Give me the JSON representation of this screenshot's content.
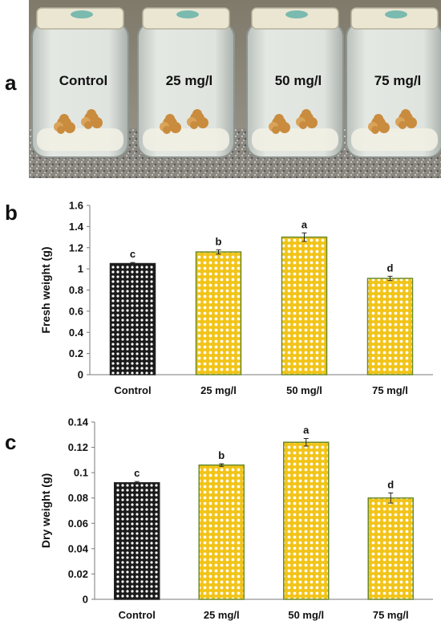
{
  "panels": [
    {
      "letter": "a",
      "jar_labels": [
        "Control",
        "25 mg/l",
        "50 mg/l",
        "75 mg/l"
      ]
    },
    {
      "letter": "b"
    },
    {
      "letter": "c"
    }
  ],
  "colors": {
    "control_fill": "#1a1a1a",
    "treatment_fill": "#f2c418",
    "treatment_border": "#6a8a2a"
  },
  "chart_data": [
    {
      "type": "bar",
      "categories": [
        "Control",
        "25 mg/l",
        "50 mg/l",
        "75 mg/l"
      ],
      "values": [
        1.05,
        1.16,
        1.3,
        0.91
      ],
      "errors": [
        0.01,
        0.02,
        0.04,
        0.02
      ],
      "labels": [
        "c",
        "b",
        "a",
        "d"
      ],
      "ylabel": "Fresh weight (g)",
      "ylim": [
        0,
        1.6
      ],
      "yticks": [
        "0",
        "0.2",
        "0.4",
        "0.6",
        "0.8",
        "1",
        "1.2",
        "1.4",
        "1.6"
      ],
      "tickvals": [
        0,
        0.2,
        0.4,
        0.6,
        0.8,
        1,
        1.2,
        1.4,
        1.6
      ]
    },
    {
      "type": "bar",
      "categories": [
        "Control",
        "25 mg/l",
        "50 mg/l",
        "75 mg/l"
      ],
      "values": [
        0.092,
        0.106,
        0.124,
        0.08
      ],
      "errors": [
        0.001,
        0.001,
        0.003,
        0.004
      ],
      "labels": [
        "c",
        "b",
        "a",
        "d"
      ],
      "ylabel": "Dry weight (g)",
      "ylim": [
        0,
        0.14
      ],
      "yticks": [
        "0",
        "0.02",
        "0.04",
        "0.06",
        "0.08",
        "0.1",
        "0.12",
        "0.14"
      ],
      "tickvals": [
        0,
        0.02,
        0.04,
        0.06,
        0.08,
        0.1,
        0.12,
        0.14
      ]
    }
  ]
}
